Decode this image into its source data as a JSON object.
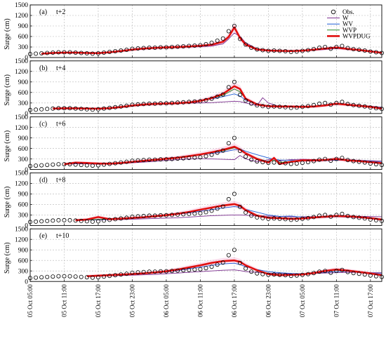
{
  "colors": {
    "obs": "#000000",
    "W": "#7b2d8e",
    "WV": "#1f5fd6",
    "WVP": "#2a8a2a",
    "WVPDUG": "#e01010",
    "band": "#f7b9d6",
    "grid": "#b5b5b5"
  },
  "chart_data": {
    "type": "line",
    "ylabel": "Surge (cm)",
    "ylim": [
      0,
      1500
    ],
    "yticks": [
      "0",
      "300",
      "600",
      "900",
      "1200",
      "1500"
    ],
    "xlim": [
      0,
      62
    ],
    "xticks": [
      {
        "x": 0,
        "label": "05 Oct 05:00"
      },
      {
        "x": 6,
        "label": "05 Oct 11:00"
      },
      {
        "x": 12,
        "label": "05 Oct 17:00"
      },
      {
        "x": 18,
        "label": "05 Oct 23:00"
      },
      {
        "x": 24,
        "label": "06 Oct 05:00"
      },
      {
        "x": 30,
        "label": "06 Oct 11:00"
      },
      {
        "x": 36,
        "label": "06 Oct 17:00"
      },
      {
        "x": 42,
        "label": "06 Oct 23:00"
      },
      {
        "x": 48,
        "label": "07 Oct 05:00"
      },
      {
        "x": 54,
        "label": "07 Oct 11:00"
      },
      {
        "x": 60,
        "label": "07 Oct 17:00"
      }
    ],
    "legend": {
      "placement": "top-right",
      "entries": [
        {
          "key": "obs",
          "label": "Obs."
        },
        {
          "key": "W",
          "label": "W"
        },
        {
          "key": "WV",
          "label": "WV"
        },
        {
          "key": "WVP",
          "label": "WVP"
        },
        {
          "key": "WVPDUG",
          "label": "WVPDUG"
        }
      ]
    },
    "observed": {
      "name": "Obs.",
      "x": [
        0,
        1,
        2,
        3,
        4,
        5,
        6,
        7,
        8,
        9,
        10,
        11,
        12,
        13,
        14,
        15,
        16,
        17,
        18,
        19,
        20,
        21,
        22,
        23,
        24,
        25,
        26,
        27,
        28,
        29,
        30,
        31,
        32,
        33,
        34,
        35,
        36,
        37,
        38,
        39,
        40,
        41,
        42,
        43,
        44,
        45,
        46,
        47,
        48,
        49,
        50,
        51,
        52,
        53,
        54,
        55,
        56,
        57,
        58,
        59,
        60,
        61,
        62
      ],
      "y": [
        100,
        110,
        120,
        130,
        140,
        150,
        150,
        150,
        140,
        130,
        120,
        110,
        120,
        140,
        160,
        180,
        200,
        220,
        250,
        260,
        270,
        280,
        280,
        290,
        290,
        300,
        310,
        320,
        330,
        340,
        350,
        380,
        420,
        480,
        540,
        750,
        900,
        530,
        370,
        280,
        230,
        210,
        190,
        200,
        190,
        180,
        160,
        170,
        190,
        210,
        240,
        280,
        300,
        250,
        300,
        330,
        270,
        240,
        220,
        200,
        170,
        150,
        130
      ]
    },
    "panels": [
      {
        "label": "(a)",
        "lead": "t+2",
        "x": [
          2,
          4,
          6,
          8,
          10,
          12,
          14,
          16,
          18,
          20,
          22,
          24,
          26,
          28,
          30,
          32,
          34,
          35,
          36,
          37,
          38,
          40,
          42,
          44,
          46,
          48,
          50,
          52,
          54,
          56,
          58,
          60,
          62
        ],
        "series": [
          {
            "key": "W",
            "name": "W",
            "y": [
              110,
              130,
              140,
              140,
              135,
              130,
              150,
              180,
              220,
              250,
              270,
              280,
              290,
              300,
              310,
              330,
              390,
              530,
              700,
              600,
              420,
              250,
              210,
              200,
              195,
              190,
              210,
              230,
              260,
              230,
              210,
              190,
              150
            ]
          },
          {
            "key": "WV",
            "name": "WV",
            "y": [
              110,
              135,
              145,
              140,
              130,
              125,
              150,
              190,
              230,
              260,
              280,
              290,
              300,
              320,
              340,
              370,
              460,
              600,
              850,
              560,
              380,
              240,
              200,
              190,
              185,
              200,
              230,
              260,
              290,
              250,
              220,
              180,
              140
            ]
          },
          {
            "key": "WVP",
            "name": "WVP",
            "y": [
              108,
              132,
              142,
              138,
              130,
              128,
              152,
              188,
              228,
              258,
              278,
              290,
              300,
              318,
              338,
              368,
              455,
              590,
              840,
              555,
              375,
              238,
              198,
              188,
              183,
              198,
              228,
              258,
              288,
              248,
              218,
              178,
              138
            ]
          },
          {
            "key": "WVPDUG",
            "name": "WVPDUG",
            "y": [
              110,
              130,
              140,
              140,
              130,
              125,
              150,
              185,
              225,
              255,
              275,
              288,
              298,
              315,
              335,
              365,
              450,
              590,
              860,
              560,
              370,
              230,
              200,
              190,
              185,
              195,
              225,
              255,
              285,
              245,
              215,
              175,
              135
            ]
          }
        ]
      },
      {
        "label": "(b)",
        "lead": "t+4",
        "x": [
          4,
          6,
          8,
          10,
          12,
          14,
          16,
          18,
          20,
          22,
          24,
          26,
          28,
          30,
          32,
          34,
          36,
          37,
          38,
          40,
          41,
          42,
          44,
          46,
          48,
          50,
          52,
          54,
          56,
          58,
          60,
          62
        ],
        "series": [
          {
            "key": "W",
            "name": "W",
            "y": [
              140,
              150,
              145,
              140,
              140,
              150,
              180,
              220,
              250,
              270,
              280,
              290,
              300,
              300,
              310,
              330,
              350,
              340,
              300,
              230,
              450,
              300,
              200,
              190,
              190,
              200,
              230,
              260,
              250,
              230,
              210,
              180
            ]
          },
          {
            "key": "WV",
            "name": "WV",
            "y": [
              140,
              150,
              150,
              145,
              140,
              155,
              190,
              230,
              260,
              280,
              290,
              300,
              320,
              360,
              420,
              480,
              560,
              500,
              380,
              260,
              240,
              220,
              210,
              205,
              200,
              210,
              240,
              270,
              250,
              230,
              200,
              160
            ]
          },
          {
            "key": "WVP",
            "name": "WVP",
            "y": [
              138,
              148,
              148,
              143,
              138,
              153,
              188,
              228,
              258,
              278,
              288,
              298,
              318,
              358,
              430,
              520,
              700,
              620,
              420,
              270,
              235,
              215,
              205,
              200,
              195,
              205,
              235,
              265,
              245,
              225,
              195,
              155
            ]
          },
          {
            "key": "WVPDUG",
            "name": "WVPDUG",
            "y": [
              140,
              150,
              148,
              142,
              138,
              152,
              185,
              225,
              255,
              275,
              285,
              295,
              315,
              360,
              440,
              560,
              780,
              700,
              420,
              260,
              230,
              210,
              200,
              200,
              190,
              200,
              230,
              280,
              250,
              220,
              190,
              140
            ]
          }
        ]
      },
      {
        "label": "(c)",
        "lead": "t+6",
        "x": [
          6,
          8,
          10,
          12,
          14,
          16,
          18,
          20,
          22,
          24,
          26,
          28,
          30,
          32,
          34,
          36,
          37,
          38,
          40,
          42,
          43,
          44,
          46,
          48,
          50,
          52,
          54,
          56,
          58,
          60,
          62
        ],
        "series": [
          {
            "key": "W",
            "name": "W",
            "y": [
              150,
              160,
              160,
              150,
              150,
              170,
              190,
              210,
              230,
              260,
              280,
              300,
              310,
              300,
              290,
              280,
              400,
              300,
              220,
              280,
              300,
              250,
              280,
              290,
              280,
              270,
              260,
              270,
              260,
              250,
              240
            ]
          },
          {
            "key": "WV",
            "name": "WV",
            "y": [
              150,
              170,
              175,
              165,
              160,
              180,
              210,
              240,
              270,
              300,
              330,
              370,
              420,
              460,
              500,
              560,
              580,
              520,
              420,
              330,
              290,
              270,
              260,
              250,
              240,
              250,
              270,
              280,
              260,
              240,
              210
            ]
          },
          {
            "key": "WVP",
            "name": "WVP",
            "y": [
              148,
              190,
              185,
              170,
              165,
              185,
              215,
              245,
              275,
              305,
              335,
              380,
              430,
              480,
              530,
              620,
              560,
              460,
              320,
              220,
              260,
              200,
              230,
              260,
              250,
              260,
              290,
              250,
              240,
              220,
              190
            ]
          },
          {
            "key": "WVPDUG",
            "name": "WVPDUG",
            "y": [
              150,
              195,
              185,
              170,
              165,
              185,
              215,
              245,
              275,
              305,
              335,
              380,
              430,
              490,
              560,
              650,
              570,
              460,
              300,
              200,
              330,
              160,
              220,
              260,
              260,
              270,
              300,
              260,
              240,
              210,
              180
            ]
          }
        ]
      },
      {
        "label": "(d)",
        "lead": "t+8",
        "x": [
          8,
          10,
          12,
          14,
          16,
          18,
          20,
          22,
          24,
          26,
          28,
          30,
          32,
          34,
          36,
          37,
          38,
          40,
          42,
          44,
          46,
          48,
          50,
          52,
          54,
          56,
          58,
          60,
          62
        ],
        "series": [
          {
            "key": "W",
            "name": "W",
            "y": [
              150,
              155,
              160,
              165,
              170,
              180,
              190,
              200,
              210,
              220,
              240,
              260,
              280,
              290,
              300,
              300,
              290,
              280,
              270,
              260,
              250,
              250,
              250,
              255,
              260,
              265,
              260,
              255,
              250
            ]
          },
          {
            "key": "WV",
            "name": "WV",
            "y": [
              150,
              160,
              170,
              175,
              180,
              200,
              220,
              250,
              280,
              320,
              360,
              410,
              450,
              500,
              540,
              520,
              460,
              380,
              300,
              260,
              270,
              240,
              220,
              230,
              250,
              240,
              220,
              200,
              180
            ]
          },
          {
            "key": "WVP",
            "name": "WVP",
            "y": [
              150,
              165,
              175,
              180,
              190,
              210,
              230,
              260,
              290,
              330,
              380,
              440,
              500,
              560,
              600,
              560,
              450,
              300,
              230,
              220,
              200,
              210,
              230,
              250,
              270,
              260,
              240,
              220,
              180
            ]
          },
          {
            "key": "WVPDUG",
            "name": "WVPDUG",
            "y": [
              150,
              170,
              240,
              180,
              195,
              215,
              235,
              265,
              295,
              335,
              385,
              450,
              510,
              570,
              610,
              560,
              440,
              280,
              220,
              210,
              190,
              200,
              230,
              250,
              270,
              260,
              240,
              210,
              170
            ]
          }
        ]
      },
      {
        "label": "(e)",
        "lead": "t+10",
        "x": [
          10,
          12,
          14,
          16,
          18,
          20,
          22,
          24,
          26,
          28,
          30,
          32,
          34,
          36,
          37,
          38,
          40,
          42,
          44,
          46,
          48,
          50,
          52,
          54,
          56,
          58,
          60,
          62
        ],
        "series": [
          {
            "key": "W",
            "name": "W",
            "y": [
              150,
              155,
              160,
              170,
              180,
              190,
              200,
              220,
              240,
              260,
              280,
              300,
              320,
              330,
              310,
              280,
              260,
              240,
              230,
              220,
              220,
              230,
              240,
              250,
              260,
              260,
              250,
              250
            ]
          },
          {
            "key": "WV",
            "name": "WV",
            "y": [
              150,
              160,
              175,
              185,
              200,
              220,
              240,
              270,
              310,
              360,
              410,
              460,
              500,
              520,
              480,
              420,
              340,
              280,
              250,
              230,
              220,
              230,
              260,
              280,
              290,
              270,
              250,
              220
            ]
          },
          {
            "key": "WVP",
            "name": "WVP",
            "y": [
              150,
              165,
              180,
              195,
              210,
              230,
              255,
              290,
              340,
              400,
              470,
              540,
              590,
              610,
              560,
              470,
              330,
              230,
              200,
              200,
              210,
              240,
              290,
              320,
              300,
              270,
              240,
              190
            ]
          },
          {
            "key": "WVPDUG",
            "name": "WVPDUG",
            "y": [
              150,
              165,
              180,
              195,
              210,
              230,
              255,
              290,
              340,
              400,
              460,
              530,
              580,
              600,
              560,
              460,
              320,
              210,
              180,
              190,
              200,
              240,
              300,
              340,
              310,
              270,
              230,
              180
            ]
          }
        ]
      }
    ]
  }
}
